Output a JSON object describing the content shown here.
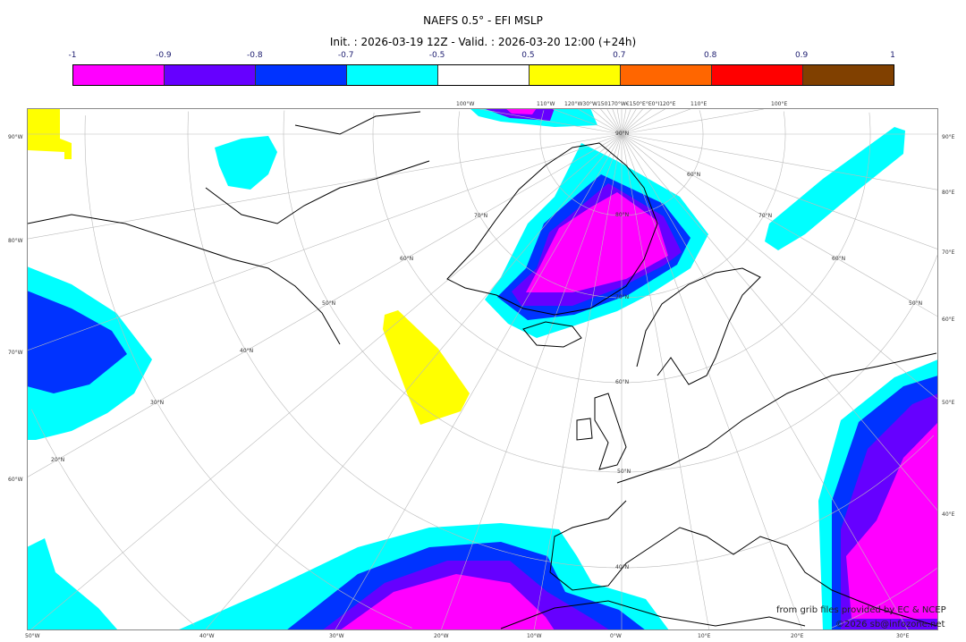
{
  "title": "NAEFS 0.5° - EFI MSLP",
  "subtitle": "Init. : 2026-03-19 12Z - Valid. : 2026-03-20 12:00 (+24h)",
  "colorbar": {
    "ticks": [
      "-1",
      "-0.9",
      "-0.8",
      "-0.7",
      "-0.5",
      "0.5",
      "0.7",
      "0.8",
      "0.9",
      "1"
    ],
    "colors": [
      "#ff00ff",
      "#6600ff",
      "#0033ff",
      "#00ffff",
      "#ffffff",
      "#ffff00",
      "#ff6600",
      "#ff0000",
      "#804000"
    ]
  },
  "labels": {
    "left": [
      "90°W",
      "80°W",
      "70°W",
      "60°W"
    ],
    "right": [
      "90°E",
      "80°E",
      "70°E",
      "60°E",
      "50°E",
      "40°E"
    ],
    "bottom": [
      "50°W",
      "40°W",
      "30°W",
      "20°W",
      "10°W",
      "0°W",
      "10°E",
      "20°E",
      "30°E"
    ],
    "top": [
      "100°W",
      "110°W",
      "120°W30°W150170°W€150°E°E0°I120°E",
      "110°E",
      "100°E"
    ],
    "lat_center": [
      "90°N",
      "80°N",
      "70°N",
      "60°N",
      "50°N",
      "40°N"
    ],
    "lat_left": [
      "70°N",
      "60°N",
      "50°N",
      "40°N",
      "30°N",
      "20°N"
    ],
    "lat_right": [
      "60°N",
      "70°N",
      "60°N",
      "50°N"
    ]
  },
  "credits": {
    "line1": "from grib files provided by EC & NCEP",
    "line2": "©2026 sb@infozone.net"
  }
}
